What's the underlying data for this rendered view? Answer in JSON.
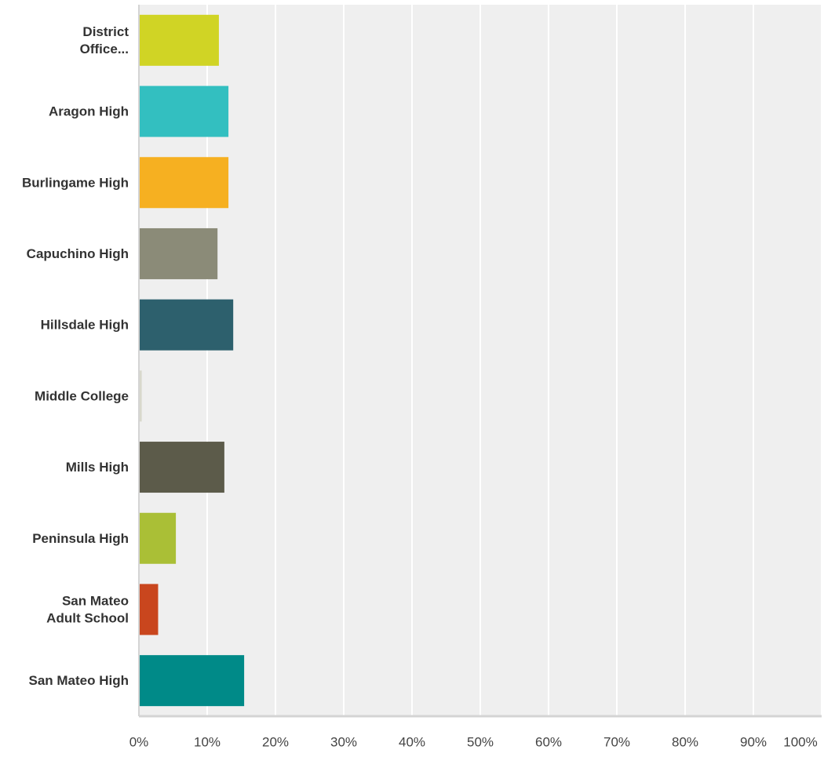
{
  "chart_data": {
    "type": "bar",
    "orientation": "horizontal",
    "title": "",
    "xlabel": "",
    "ylabel": "",
    "xlim": [
      0,
      100
    ],
    "grid": true,
    "legend": "none",
    "categories": [
      [
        "District",
        "Office..."
      ],
      [
        "Aragon High"
      ],
      [
        "Burlingame High"
      ],
      [
        "Capuchino High"
      ],
      [
        "Hillsdale High"
      ],
      [
        "Middle College"
      ],
      [
        "Mills High"
      ],
      [
        "Peninsula High"
      ],
      [
        "San Mateo",
        "Adult School"
      ],
      [
        "San Mateo High"
      ]
    ],
    "values": [
      11.6,
      13.0,
      13.0,
      11.4,
      13.7,
      0.3,
      12.4,
      5.3,
      2.7,
      15.3
    ],
    "colors": [
      "#d0d425",
      "#33bfc0",
      "#f6b021",
      "#8b8b78",
      "#2d606d",
      "#d8d8cc",
      "#5c5b4a",
      "#aabf36",
      "#c9461e",
      "#008a88"
    ],
    "xticks": [
      "0%",
      "10%",
      "20%",
      "30%",
      "40%",
      "50%",
      "60%",
      "70%",
      "80%",
      "90%",
      "100%"
    ]
  }
}
